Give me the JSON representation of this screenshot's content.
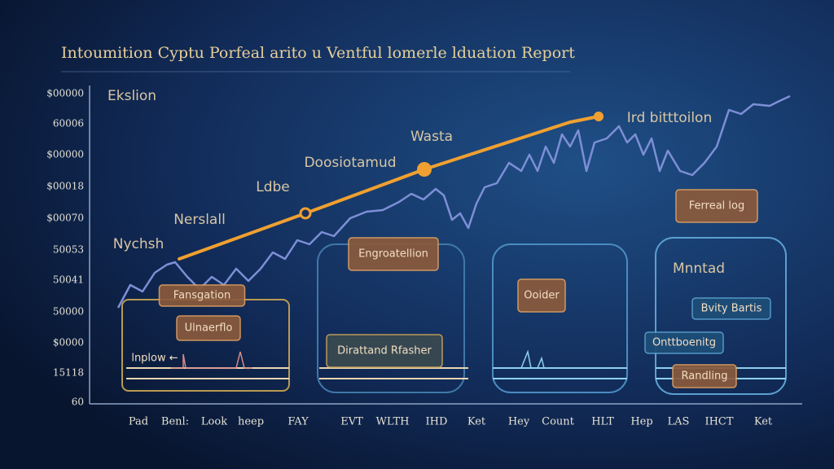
{
  "header": {
    "title": "Intoumition Cyptu Porfeal arito u Ventful lomerle lduation Report"
  },
  "y_axis_labels": [
    "$00000",
    "60006",
    "$00000",
    "$00018",
    "$00070",
    "50053",
    "50041",
    "50000",
    "$0000",
    "15118",
    "60"
  ],
  "x_axis_labels": [
    "Pad",
    "Benl:",
    "Look",
    "heep",
    "FAY",
    "EVT",
    "WLTH",
    "IHD",
    "Ket",
    "Hey",
    "Count",
    "HLT",
    "Hep",
    "LAS",
    "IHCT",
    "Ket"
  ],
  "annotations": [
    "Ekslion",
    "Wasta",
    "Doosiotamud",
    "Ldbe",
    "Nerslall",
    "Nychsh",
    "Ird bitttoilon",
    "Mnntad"
  ],
  "boxes": [
    "Ferreal log",
    "Engroatellion",
    "Fansgation",
    "Ulnaerflo",
    "Ooider",
    "Bvity Bartis",
    "Onttboenitg",
    "Dirattand Rfasher",
    "Randling",
    "lnplow ←"
  ]
}
